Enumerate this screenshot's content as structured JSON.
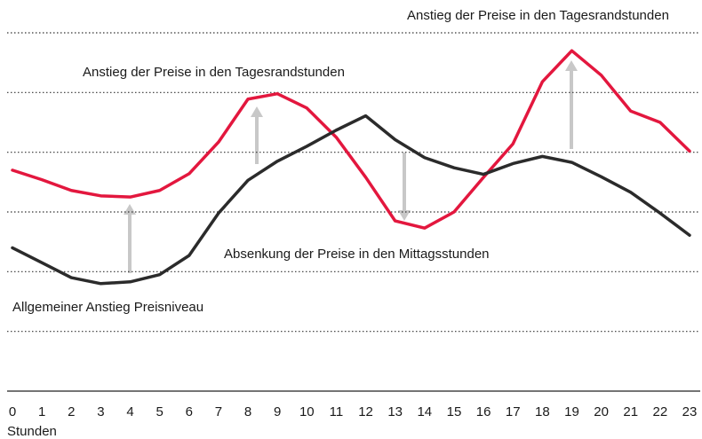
{
  "chart_data": {
    "type": "line",
    "x": [
      0,
      1,
      2,
      3,
      4,
      5,
      6,
      7,
      8,
      9,
      10,
      11,
      12,
      13,
      14,
      15,
      16,
      17,
      18,
      19,
      20,
      21,
      22,
      23
    ],
    "series": [
      {
        "color": "#e3173e",
        "values": [
          3.7,
          3.54,
          3.36,
          3.27,
          3.25,
          3.36,
          3.64,
          4.17,
          4.89,
          4.98,
          4.74,
          4.25,
          3.58,
          2.85,
          2.73,
          3.0,
          3.58,
          4.14,
          5.18,
          5.7,
          5.29,
          4.69,
          4.5,
          4.02
        ]
      },
      {
        "color": "#2b2b2b",
        "values": [
          2.4,
          2.15,
          1.9,
          1.8,
          1.83,
          1.95,
          2.27,
          2.98,
          3.53,
          3.85,
          4.1,
          4.37,
          4.61,
          4.21,
          3.91,
          3.74,
          3.63,
          3.81,
          3.93,
          3.83,
          3.59,
          3.33,
          2.98,
          2.61
        ]
      }
    ],
    "x_label": "Stunden",
    "xlim": [
      0,
      23
    ],
    "xticks": [
      0,
      1,
      2,
      3,
      4,
      5,
      6,
      7,
      8,
      9,
      10,
      11,
      12,
      13,
      14,
      15,
      16,
      17,
      18,
      19,
      20,
      21,
      22,
      23
    ],
    "ylim": [
      0,
      6
    ],
    "yticks": [
      1,
      2,
      3,
      4,
      5,
      6
    ],
    "grid": true,
    "annotations": [
      "Anstieg der Preise in den Tagesrandstunden",
      "Anstieg der Preise in den Tagesrandstunden",
      "Absenkung der Preise in den Mittagsstunden",
      "Allgemeiner Anstieg Preisniveau"
    ]
  }
}
